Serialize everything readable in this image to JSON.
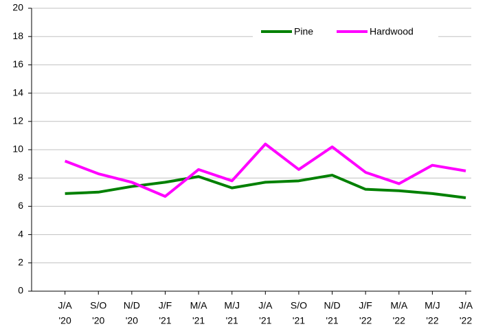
{
  "chart_data": {
    "type": "line",
    "categories": [
      [
        "J/A",
        "'20"
      ],
      [
        "S/O",
        "'20"
      ],
      [
        "N/D",
        "'20"
      ],
      [
        "J/F",
        "'21"
      ],
      [
        "M/A",
        "'21"
      ],
      [
        "M/J",
        "'21"
      ],
      [
        "J/A",
        "'21"
      ],
      [
        "S/O",
        "'21"
      ],
      [
        "N/D",
        "'21"
      ],
      [
        "J/F",
        "'22"
      ],
      [
        "M/A",
        "'22"
      ],
      [
        "M/J",
        "'22"
      ],
      [
        "J/A",
        "'22"
      ]
    ],
    "series": [
      {
        "name": "Pine",
        "color": "#008000",
        "values": [
          6.9,
          7.0,
          7.4,
          7.7,
          8.1,
          7.3,
          7.7,
          7.8,
          8.2,
          7.2,
          7.1,
          6.9,
          6.6
        ]
      },
      {
        "name": "Hardwood",
        "color": "#ff00ff",
        "values": [
          9.2,
          8.3,
          7.7,
          6.7,
          8.6,
          7.8,
          10.4,
          8.6,
          10.2,
          8.4,
          7.6,
          8.9,
          8.5
        ]
      }
    ],
    "ylim": [
      0,
      20
    ],
    "yticks": [
      0,
      2,
      4,
      6,
      8,
      10,
      12,
      14,
      16,
      18,
      20
    ],
    "grid": true
  }
}
